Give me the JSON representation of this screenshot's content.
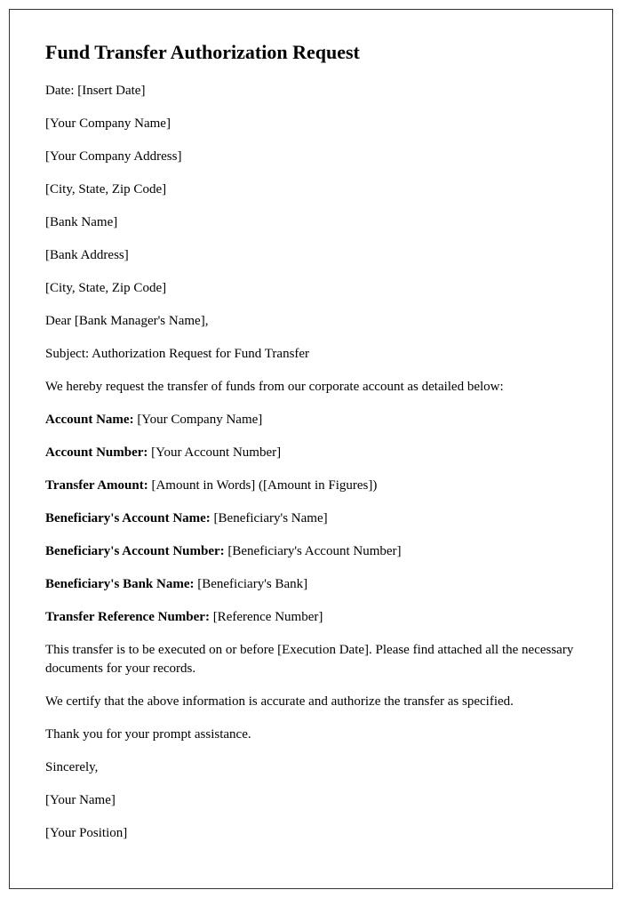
{
  "title": "Fund Transfer Authorization Request",
  "date_line": "Date: [Insert Date]",
  "company_name": "[Your Company Name]",
  "company_address": "[Your Company Address]",
  "company_city": "[City, State, Zip Code]",
  "bank_name": "[Bank Name]",
  "bank_address": "[Bank Address]",
  "bank_city": "[City, State, Zip Code]",
  "salutation": "Dear [Bank Manager's Name],",
  "subject_line": "Subject: Authorization Request for Fund Transfer",
  "intro": "We hereby request the transfer of funds from our corporate account as detailed below:",
  "fields": {
    "account_name": {
      "label": "Account Name:",
      "value": " [Your Company Name]"
    },
    "account_number": {
      "label": "Account Number:",
      "value": " [Your Account Number]"
    },
    "transfer_amount": {
      "label": "Transfer Amount:",
      "value": " [Amount in Words] ([Amount in Figures])"
    },
    "beneficiary_name": {
      "label": "Beneficiary's Account Name:",
      "value": " [Beneficiary's Name]"
    },
    "beneficiary_account": {
      "label": "Beneficiary's Account Number:",
      "value": " [Beneficiary's Account Number]"
    },
    "beneficiary_bank": {
      "label": "Beneficiary's Bank Name:",
      "value": " [Beneficiary's Bank]"
    },
    "reference": {
      "label": "Transfer Reference Number:",
      "value": " [Reference Number]"
    }
  },
  "execution_note": "This transfer is to be executed on or before [Execution Date]. Please find attached all the necessary documents for your records.",
  "certification": "We certify that the above information is accurate and authorize the transfer as specified.",
  "thanks": "Thank you for your prompt assistance.",
  "closing": "Sincerely,",
  "signer_name": "[Your Name]",
  "signer_position": "[Your Position]"
}
